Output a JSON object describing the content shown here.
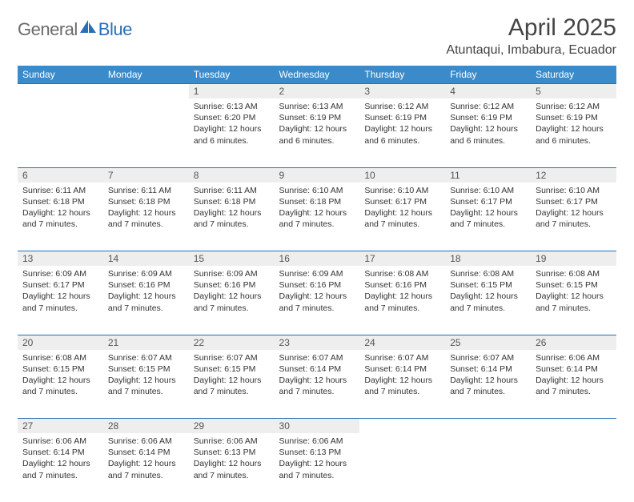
{
  "brand": {
    "part1": "General",
    "part2": "Blue"
  },
  "title": "April 2025",
  "location": "Atuntaqui, Imbabura, Ecuador",
  "colors": {
    "header_bg": "#3b8bca",
    "header_text": "#ffffff",
    "rule": "#2a6fb5",
    "daynum_bg": "#eeeeee",
    "brand_gray": "#6a6a6a",
    "brand_blue": "#2a6fb5"
  },
  "weekdays": [
    "Sunday",
    "Monday",
    "Tuesday",
    "Wednesday",
    "Thursday",
    "Friday",
    "Saturday"
  ],
  "weeks": [
    [
      null,
      null,
      {
        "n": "1",
        "sr": "Sunrise: 6:13 AM",
        "ss": "Sunset: 6:20 PM",
        "d1": "Daylight: 12 hours",
        "d2": "and 6 minutes."
      },
      {
        "n": "2",
        "sr": "Sunrise: 6:13 AM",
        "ss": "Sunset: 6:19 PM",
        "d1": "Daylight: 12 hours",
        "d2": "and 6 minutes."
      },
      {
        "n": "3",
        "sr": "Sunrise: 6:12 AM",
        "ss": "Sunset: 6:19 PM",
        "d1": "Daylight: 12 hours",
        "d2": "and 6 minutes."
      },
      {
        "n": "4",
        "sr": "Sunrise: 6:12 AM",
        "ss": "Sunset: 6:19 PM",
        "d1": "Daylight: 12 hours",
        "d2": "and 6 minutes."
      },
      {
        "n": "5",
        "sr": "Sunrise: 6:12 AM",
        "ss": "Sunset: 6:19 PM",
        "d1": "Daylight: 12 hours",
        "d2": "and 6 minutes."
      }
    ],
    [
      {
        "n": "6",
        "sr": "Sunrise: 6:11 AM",
        "ss": "Sunset: 6:18 PM",
        "d1": "Daylight: 12 hours",
        "d2": "and 7 minutes."
      },
      {
        "n": "7",
        "sr": "Sunrise: 6:11 AM",
        "ss": "Sunset: 6:18 PM",
        "d1": "Daylight: 12 hours",
        "d2": "and 7 minutes."
      },
      {
        "n": "8",
        "sr": "Sunrise: 6:11 AM",
        "ss": "Sunset: 6:18 PM",
        "d1": "Daylight: 12 hours",
        "d2": "and 7 minutes."
      },
      {
        "n": "9",
        "sr": "Sunrise: 6:10 AM",
        "ss": "Sunset: 6:18 PM",
        "d1": "Daylight: 12 hours",
        "d2": "and 7 minutes."
      },
      {
        "n": "10",
        "sr": "Sunrise: 6:10 AM",
        "ss": "Sunset: 6:17 PM",
        "d1": "Daylight: 12 hours",
        "d2": "and 7 minutes."
      },
      {
        "n": "11",
        "sr": "Sunrise: 6:10 AM",
        "ss": "Sunset: 6:17 PM",
        "d1": "Daylight: 12 hours",
        "d2": "and 7 minutes."
      },
      {
        "n": "12",
        "sr": "Sunrise: 6:10 AM",
        "ss": "Sunset: 6:17 PM",
        "d1": "Daylight: 12 hours",
        "d2": "and 7 minutes."
      }
    ],
    [
      {
        "n": "13",
        "sr": "Sunrise: 6:09 AM",
        "ss": "Sunset: 6:17 PM",
        "d1": "Daylight: 12 hours",
        "d2": "and 7 minutes."
      },
      {
        "n": "14",
        "sr": "Sunrise: 6:09 AM",
        "ss": "Sunset: 6:16 PM",
        "d1": "Daylight: 12 hours",
        "d2": "and 7 minutes."
      },
      {
        "n": "15",
        "sr": "Sunrise: 6:09 AM",
        "ss": "Sunset: 6:16 PM",
        "d1": "Daylight: 12 hours",
        "d2": "and 7 minutes."
      },
      {
        "n": "16",
        "sr": "Sunrise: 6:09 AM",
        "ss": "Sunset: 6:16 PM",
        "d1": "Daylight: 12 hours",
        "d2": "and 7 minutes."
      },
      {
        "n": "17",
        "sr": "Sunrise: 6:08 AM",
        "ss": "Sunset: 6:16 PM",
        "d1": "Daylight: 12 hours",
        "d2": "and 7 minutes."
      },
      {
        "n": "18",
        "sr": "Sunrise: 6:08 AM",
        "ss": "Sunset: 6:15 PM",
        "d1": "Daylight: 12 hours",
        "d2": "and 7 minutes."
      },
      {
        "n": "19",
        "sr": "Sunrise: 6:08 AM",
        "ss": "Sunset: 6:15 PM",
        "d1": "Daylight: 12 hours",
        "d2": "and 7 minutes."
      }
    ],
    [
      {
        "n": "20",
        "sr": "Sunrise: 6:08 AM",
        "ss": "Sunset: 6:15 PM",
        "d1": "Daylight: 12 hours",
        "d2": "and 7 minutes."
      },
      {
        "n": "21",
        "sr": "Sunrise: 6:07 AM",
        "ss": "Sunset: 6:15 PM",
        "d1": "Daylight: 12 hours",
        "d2": "and 7 minutes."
      },
      {
        "n": "22",
        "sr": "Sunrise: 6:07 AM",
        "ss": "Sunset: 6:15 PM",
        "d1": "Daylight: 12 hours",
        "d2": "and 7 minutes."
      },
      {
        "n": "23",
        "sr": "Sunrise: 6:07 AM",
        "ss": "Sunset: 6:14 PM",
        "d1": "Daylight: 12 hours",
        "d2": "and 7 minutes."
      },
      {
        "n": "24",
        "sr": "Sunrise: 6:07 AM",
        "ss": "Sunset: 6:14 PM",
        "d1": "Daylight: 12 hours",
        "d2": "and 7 minutes."
      },
      {
        "n": "25",
        "sr": "Sunrise: 6:07 AM",
        "ss": "Sunset: 6:14 PM",
        "d1": "Daylight: 12 hours",
        "d2": "and 7 minutes."
      },
      {
        "n": "26",
        "sr": "Sunrise: 6:06 AM",
        "ss": "Sunset: 6:14 PM",
        "d1": "Daylight: 12 hours",
        "d2": "and 7 minutes."
      }
    ],
    [
      {
        "n": "27",
        "sr": "Sunrise: 6:06 AM",
        "ss": "Sunset: 6:14 PM",
        "d1": "Daylight: 12 hours",
        "d2": "and 7 minutes."
      },
      {
        "n": "28",
        "sr": "Sunrise: 6:06 AM",
        "ss": "Sunset: 6:14 PM",
        "d1": "Daylight: 12 hours",
        "d2": "and 7 minutes."
      },
      {
        "n": "29",
        "sr": "Sunrise: 6:06 AM",
        "ss": "Sunset: 6:13 PM",
        "d1": "Daylight: 12 hours",
        "d2": "and 7 minutes."
      },
      {
        "n": "30",
        "sr": "Sunrise: 6:06 AM",
        "ss": "Sunset: 6:13 PM",
        "d1": "Daylight: 12 hours",
        "d2": "and 7 minutes."
      },
      null,
      null,
      null
    ]
  ]
}
